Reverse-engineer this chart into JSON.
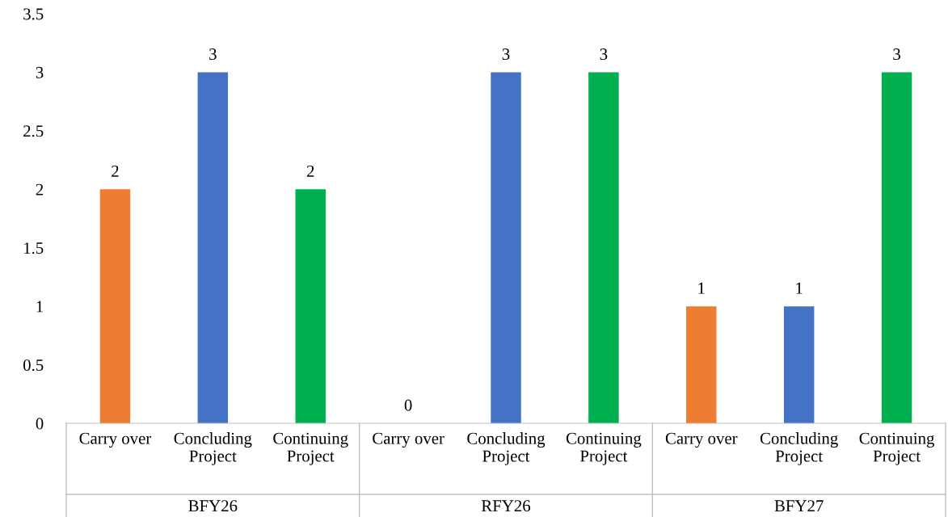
{
  "chart_data": {
    "type": "bar",
    "categories": [
      "Carry over",
      "Concluding\nProject",
      "Continuing\nProject",
      "Carry over",
      "Concluding\nProject",
      "Continuing\nProject",
      "Carry over",
      "Concluding\nProject",
      "Continuing\nProject"
    ],
    "values": [
      2,
      3,
      2,
      0,
      3,
      3,
      1,
      1,
      3
    ],
    "colors": [
      "#ed7d31",
      "#4472c4",
      "#00b050",
      "#ed7d31",
      "#4472c4",
      "#00b050",
      "#ed7d31",
      "#4472c4",
      "#00b050"
    ],
    "annotations": [
      "BFY26",
      "RFY26",
      "BFY27"
    ],
    "ylim": [
      0,
      3.5
    ],
    "yticks": [
      0,
      0.5,
      1,
      1.5,
      2,
      2.5,
      3,
      3.5
    ],
    "data_labels": true,
    "grid": false,
    "legend": false
  }
}
